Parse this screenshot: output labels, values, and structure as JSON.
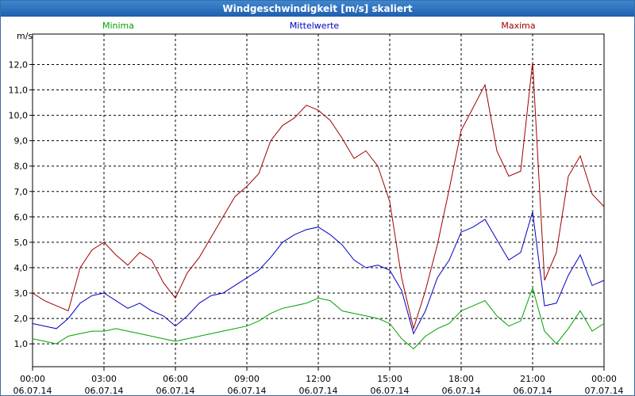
{
  "window": {
    "title": "Windgeschwindigkeit [m/s] skaliert"
  },
  "chart_data": {
    "type": "line",
    "title": "Windgeschwindigkeit [m/s] skaliert",
    "ylabel": "m/s",
    "xlabel": "",
    "ylim": [
      0.1,
      13.2
    ],
    "xlim": [
      0,
      24
    ],
    "y_ticks": [
      1,
      2,
      3,
      4,
      5,
      6,
      7,
      8,
      9,
      10,
      11,
      12
    ],
    "y_tick_labels": [
      "1,0",
      "2,0",
      "3,0",
      "4,0",
      "5,0",
      "6,0",
      "7,0",
      "8,0",
      "9,0",
      "10,0",
      "11,0",
      "12,0"
    ],
    "x_ticks": [
      {
        "x": 0,
        "time": "00:00",
        "date": "06.07.14"
      },
      {
        "x": 3,
        "time": "03:00",
        "date": "06.07.14"
      },
      {
        "x": 6,
        "time": "06:00",
        "date": "06.07.14"
      },
      {
        "x": 9,
        "time": "09:00",
        "date": "06.07.14"
      },
      {
        "x": 12,
        "time": "12:00",
        "date": "06.07.14"
      },
      {
        "x": 15,
        "time": "15:00",
        "date": "06.07.14"
      },
      {
        "x": 18,
        "time": "18:00",
        "date": "06.07.14"
      },
      {
        "x": 21,
        "time": "21:00",
        "date": "06.07.14"
      },
      {
        "x": 24,
        "time": "00:00",
        "date": "07.07.14"
      }
    ],
    "grid": true,
    "legend_position": "top",
    "series": [
      {
        "name": "Minima",
        "color": "#00a000",
        "x": [
          0,
          0.5,
          1,
          1.5,
          2,
          2.5,
          3,
          3.5,
          4,
          4.5,
          5,
          5.5,
          6,
          6.5,
          7,
          7.5,
          8,
          8.5,
          9,
          9.5,
          10,
          10.5,
          11,
          11.5,
          12,
          12.5,
          13,
          13.5,
          14,
          14.5,
          15,
          15.5,
          16,
          16.5,
          17,
          17.5,
          18,
          18.5,
          19,
          19.5,
          20,
          20.5,
          21,
          21.5,
          22,
          22.5,
          23,
          23.5,
          24
        ],
        "values": [
          1.2,
          1.1,
          1.0,
          1.3,
          1.4,
          1.5,
          1.5,
          1.6,
          1.5,
          1.4,
          1.3,
          1.2,
          1.1,
          1.2,
          1.3,
          1.4,
          1.5,
          1.6,
          1.7,
          1.9,
          2.2,
          2.4,
          2.5,
          2.6,
          2.8,
          2.7,
          2.3,
          2.2,
          2.1,
          2.0,
          1.8,
          1.2,
          0.8,
          1.3,
          1.6,
          1.8,
          2.3,
          2.5,
          2.7,
          2.1,
          1.7,
          1.9,
          3.2,
          1.5,
          1.0,
          1.6,
          2.3,
          1.5,
          1.8
        ]
      },
      {
        "name": "Mittelwerte",
        "color": "#0000c0",
        "x": [
          0,
          0.5,
          1,
          1.5,
          2,
          2.5,
          3,
          3.5,
          4,
          4.5,
          5,
          5.5,
          6,
          6.5,
          7,
          7.5,
          8,
          8.5,
          9,
          9.5,
          10,
          10.5,
          11,
          11.5,
          12,
          12.5,
          13,
          13.5,
          14,
          14.5,
          15,
          15.5,
          16,
          16.5,
          17,
          17.5,
          18,
          18.5,
          19,
          19.5,
          20,
          20.5,
          21,
          21.5,
          22,
          22.5,
          23,
          23.5,
          24
        ],
        "values": [
          1.8,
          1.7,
          1.6,
          2.0,
          2.6,
          2.9,
          3.0,
          2.7,
          2.4,
          2.6,
          2.3,
          2.1,
          1.7,
          2.1,
          2.6,
          2.9,
          3.0,
          3.3,
          3.6,
          3.9,
          4.4,
          5.0,
          5.3,
          5.5,
          5.6,
          5.3,
          4.9,
          4.3,
          4.0,
          4.1,
          3.9,
          3.1,
          1.4,
          2.3,
          3.6,
          4.3,
          5.4,
          5.6,
          5.9,
          5.1,
          4.3,
          4.6,
          6.2,
          2.5,
          2.6,
          3.7,
          4.5,
          3.3,
          3.5
        ]
      },
      {
        "name": "Maxima",
        "color": "#a00000",
        "x": [
          0,
          0.5,
          1,
          1.5,
          2,
          2.5,
          3,
          3.5,
          4,
          4.5,
          5,
          5.5,
          6,
          6.5,
          7,
          7.5,
          8,
          8.5,
          9,
          9.5,
          10,
          10.5,
          11,
          11.5,
          12,
          12.5,
          13,
          13.5,
          14,
          14.5,
          15,
          15.5,
          16,
          16.5,
          17,
          17.5,
          18,
          18.5,
          19,
          19.5,
          20,
          20.5,
          21,
          21.5,
          22,
          22.5,
          23,
          23.5,
          24
        ],
        "values": [
          3.0,
          2.7,
          2.5,
          2.3,
          4.0,
          4.7,
          5.0,
          4.5,
          4.1,
          4.6,
          4.3,
          3.4,
          2.8,
          3.8,
          4.4,
          5.2,
          6.0,
          6.8,
          7.2,
          7.7,
          9.0,
          9.6,
          9.9,
          10.4,
          10.2,
          9.8,
          9.1,
          8.3,
          8.6,
          8.0,
          6.6,
          3.6,
          1.6,
          3.1,
          4.9,
          7.1,
          9.4,
          10.3,
          11.2,
          8.6,
          7.6,
          7.8,
          12.1,
          3.5,
          4.6,
          7.6,
          8.4,
          6.9,
          6.4
        ]
      }
    ]
  }
}
